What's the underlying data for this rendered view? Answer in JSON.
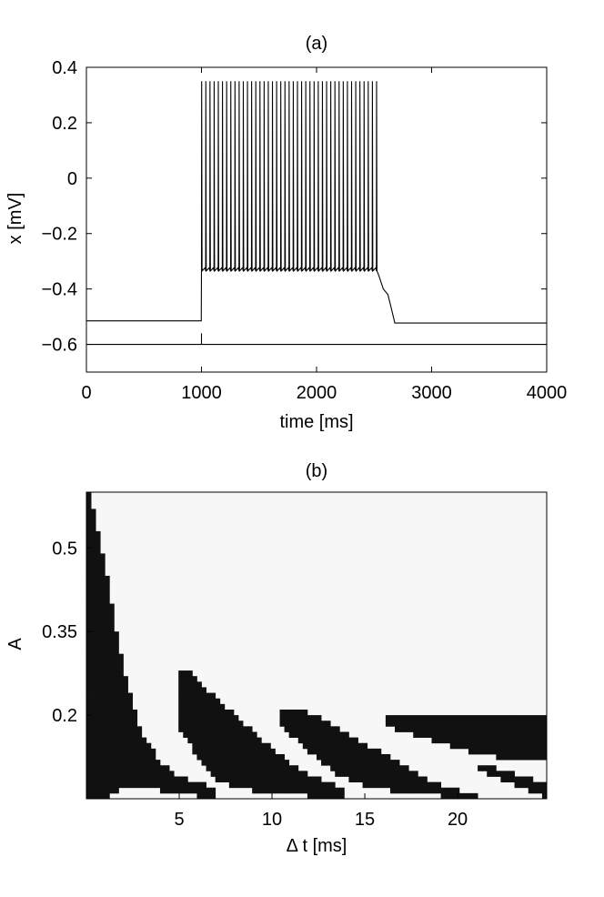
{
  "chart_data": [
    {
      "id": "a",
      "type": "line",
      "title": "(a)",
      "xlabel": "time [ms]",
      "ylabel": "x [mV]",
      "xlim": [
        0,
        4000
      ],
      "ylim": [
        -0.7,
        0.4
      ],
      "xticks": [
        0,
        1000,
        2000,
        3000,
        4000
      ],
      "yticks": [
        0.4,
        0.2,
        0,
        -0.2,
        -0.4,
        -0.6
      ],
      "xtick_labels": [
        "0",
        "1000",
        "2000",
        "3000",
        "4000"
      ],
      "ytick_labels": [
        "0.4",
        "0.2",
        "0",
        "−0.2",
        "−0.4",
        "−0.6"
      ],
      "grid": false,
      "series": [
        {
          "description_free": true,
          "baseline_before": -0.515,
          "stim_on": 1000,
          "stim_off": 2520,
          "spike_count": 43,
          "spike_first": 1000,
          "spike_last": 2520,
          "spike_peak": 0.35,
          "spike_trough": -0.335,
          "plateau_decay_end": 2680,
          "plateau_level_after": -0.42,
          "baseline_after": -0.523,
          "color": "#000000"
        },
        {
          "points": [
            [
              0,
              -0.6
            ],
            [
              4000,
              -0.6
            ]
          ],
          "tick_at": 1000,
          "tick_range": [
            -0.6,
            -0.56
          ],
          "color": "#000000"
        }
      ]
    },
    {
      "id": "b",
      "type": "heatmap",
      "title": "(b)",
      "xlabel": "Δ t [ms]",
      "ylabel": "A",
      "xlim": [
        0,
        24.8
      ],
      "ylim": [
        0.05,
        0.6
      ],
      "xticks": [
        5,
        10,
        15,
        20
      ],
      "yticks": [
        0.5,
        0.35,
        0.2
      ],
      "xtick_labels": [
        "5",
        "10",
        "15",
        "20"
      ],
      "ytick_labels": [
        "0.5",
        "0.35",
        "0.2"
      ],
      "colors": {
        "dark": "#111111",
        "light": "#f7f7f7"
      },
      "grid_cols": 100,
      "grid_rows": 55,
      "regions": [
        {
          "top": [
            [
              0.1,
              0.6
            ],
            [
              0.5,
              0.55
            ],
            [
              1.0,
              0.47
            ],
            [
              1.5,
              0.37
            ],
            [
              2.0,
              0.29
            ],
            [
              2.5,
              0.22
            ],
            [
              3.0,
              0.17
            ],
            [
              4.0,
              0.115
            ],
            [
              5.0,
              0.09
            ],
            [
              6.0,
              0.078
            ],
            [
              7.0,
              0.07
            ]
          ],
          "bottom": [
            [
              0.1,
              0.05
            ],
            [
              1.0,
              0.05
            ],
            [
              2.0,
              0.07
            ],
            [
              3.0,
              0.07
            ],
            [
              5.0,
              0.06
            ],
            [
              7.0,
              0.05
            ]
          ]
        },
        {
          "top": [
            [
              5.0,
              0.275
            ],
            [
              5.5,
              0.28
            ],
            [
              6.0,
              0.26
            ],
            [
              7.0,
              0.23
            ],
            [
              8.0,
              0.2
            ],
            [
              9.0,
              0.17
            ],
            [
              10.0,
              0.14
            ],
            [
              11.0,
              0.115
            ],
            [
              12.0,
              0.095
            ],
            [
              13.0,
              0.08
            ],
            [
              14.0,
              0.07
            ]
          ],
          "bottom": [
            [
              5.0,
              0.18
            ],
            [
              6.0,
              0.12
            ],
            [
              7.0,
              0.085
            ],
            [
              8.0,
              0.07
            ],
            [
              10.0,
              0.06
            ],
            [
              12.0,
              0.055
            ],
            [
              14.0,
              0.05
            ]
          ]
        },
        {
          "top": [
            [
              10.3,
              0.205
            ],
            [
              12.0,
              0.205
            ],
            [
              13.0,
              0.19
            ],
            [
              14.0,
              0.17
            ],
            [
              15.0,
              0.15
            ],
            [
              16.0,
              0.13
            ],
            [
              17.0,
              0.11
            ],
            [
              18.0,
              0.09
            ],
            [
              19.0,
              0.075
            ],
            [
              20.0,
              0.065
            ],
            [
              21.0,
              0.055
            ]
          ],
          "bottom": [
            [
              10.3,
              0.185
            ],
            [
              11.5,
              0.15
            ],
            [
              12.5,
              0.12
            ],
            [
              13.5,
              0.095
            ],
            [
              14.5,
              0.08
            ],
            [
              15.5,
              0.07
            ],
            [
              17.0,
              0.06
            ],
            [
              19.0,
              0.055
            ],
            [
              21.0,
              0.05
            ]
          ]
        },
        {
          "top": [
            [
              16.0,
              0.2
            ],
            [
              24.8,
              0.2
            ]
          ],
          "bottom": [
            [
              16.0,
              0.18
            ],
            [
              18.0,
              0.16
            ],
            [
              20.0,
              0.14
            ],
            [
              22.0,
              0.125
            ],
            [
              24.8,
              0.12
            ]
          ]
        },
        {
          "top": [
            [
              21.0,
              0.11
            ],
            [
              22.0,
              0.105
            ],
            [
              23.0,
              0.095
            ],
            [
              24.0,
              0.085
            ],
            [
              24.8,
              0.075
            ]
          ],
          "bottom": [
            [
              21.0,
              0.105
            ],
            [
              22.0,
              0.09
            ],
            [
              23.0,
              0.075
            ],
            [
              24.0,
              0.062
            ],
            [
              24.8,
              0.05
            ]
          ]
        }
      ]
    }
  ]
}
